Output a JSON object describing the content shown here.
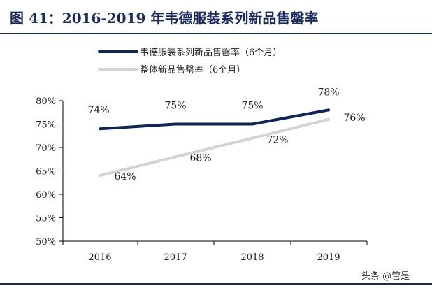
{
  "page": {
    "title": "图 41：2016-2019 年韦德服装系列新品售罄率",
    "watermark": "头条 @管是"
  },
  "colors": {
    "title": "#1a2a5e",
    "series_1": "#0f2557",
    "series_2": "#d3d3d3",
    "axis": "#000000"
  },
  "chart_data": {
    "type": "line",
    "title": "图 41：2016-2019 年韦德服装系列新品售罄率",
    "x": [
      "2016",
      "2017",
      "2018",
      "2019"
    ],
    "ylim": [
      50,
      80
    ],
    "y_ticks": [
      "80%",
      "75%",
      "70%",
      "65%",
      "60%",
      "55%",
      "50%"
    ],
    "legend_position": "top",
    "grid": false,
    "series": [
      {
        "name": "韦德服装系列新品售罄率（6个月）",
        "values": [
          74,
          75,
          75,
          78
        ],
        "labels": [
          "74%",
          "75%",
          "75%",
          "78%"
        ]
      },
      {
        "name": "整体新品售罄率（6个月）",
        "values": [
          64,
          68,
          72,
          76
        ],
        "labels": [
          "64%",
          "68%",
          "72%",
          "76%"
        ]
      }
    ]
  }
}
